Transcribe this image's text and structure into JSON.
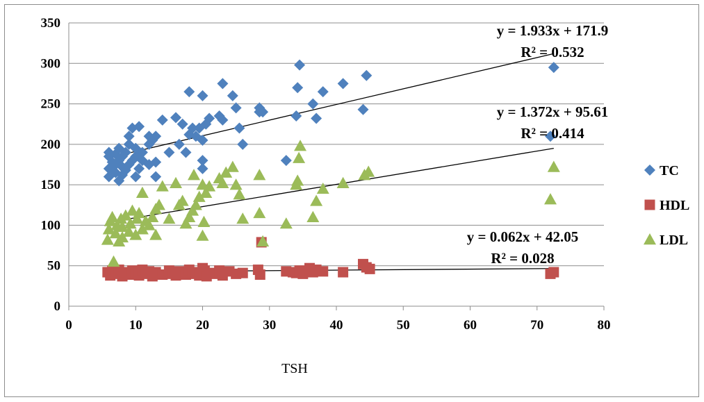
{
  "chart_data": {
    "type": "scatter",
    "xlabel": "TSH",
    "ylabel": "",
    "xlim": [
      0,
      80
    ],
    "ylim": [
      0,
      350
    ],
    "xticks": [
      "0",
      "10",
      "20",
      "30",
      "40",
      "50",
      "60",
      "70",
      "80"
    ],
    "yticks": [
      "0",
      "50",
      "100",
      "150",
      "200",
      "250",
      "300",
      "350"
    ],
    "grid": "horizontal",
    "legend_position": "right",
    "series": [
      {
        "name": "TC",
        "color": "#4F81BD",
        "marker": "diamond",
        "points": [
          [
            6,
            160
          ],
          [
            6,
            170
          ],
          [
            6,
            185
          ],
          [
            6,
            190
          ],
          [
            6.5,
            178
          ],
          [
            7,
            165
          ],
          [
            7,
            175
          ],
          [
            7,
            188
          ],
          [
            7.5,
            155
          ],
          [
            7.5,
            180
          ],
          [
            7.5,
            195
          ],
          [
            8,
            162
          ],
          [
            8,
            172
          ],
          [
            8,
            185
          ],
          [
            8.5,
            168
          ],
          [
            8.5,
            190
          ],
          [
            9,
            175
          ],
          [
            9,
            200
          ],
          [
            9,
            210
          ],
          [
            9.5,
            220
          ],
          [
            9.5,
            180
          ],
          [
            10,
            160
          ],
          [
            10,
            185
          ],
          [
            10,
            195
          ],
          [
            10.5,
            170
          ],
          [
            10.5,
            222
          ],
          [
            11,
            190
          ],
          [
            11,
            180
          ],
          [
            12,
            175
          ],
          [
            12,
            200
          ],
          [
            12,
            210
          ],
          [
            12.5,
            205
          ],
          [
            13,
            160
          ],
          [
            13,
            210
          ],
          [
            13,
            178
          ],
          [
            14,
            230
          ],
          [
            15,
            190
          ],
          [
            16,
            233
          ],
          [
            16.5,
            200
          ],
          [
            17,
            225
          ],
          [
            17.5,
            190
          ],
          [
            18,
            265
          ],
          [
            18,
            212
          ],
          [
            18.5,
            220
          ],
          [
            19,
            210
          ],
          [
            19.5,
            220
          ],
          [
            20,
            170
          ],
          [
            20,
            180
          ],
          [
            20,
            205
          ],
          [
            20,
            260
          ],
          [
            20.5,
            225
          ],
          [
            21,
            232
          ],
          [
            22.5,
            235
          ],
          [
            23,
            275
          ],
          [
            23,
            230
          ],
          [
            24.5,
            260
          ],
          [
            25,
            245
          ],
          [
            25.5,
            220
          ],
          [
            26,
            200
          ],
          [
            28.5,
            245
          ],
          [
            28.5,
            240
          ],
          [
            29,
            240
          ],
          [
            32.5,
            180
          ],
          [
            34,
            235
          ],
          [
            34.2,
            270
          ],
          [
            34.5,
            298
          ],
          [
            36.5,
            250
          ],
          [
            37,
            232
          ],
          [
            38,
            265
          ],
          [
            41,
            275
          ],
          [
            44,
            243
          ],
          [
            44.5,
            285
          ],
          [
            72,
            210
          ],
          [
            72.5,
            295
          ]
        ]
      },
      {
        "name": "HDL",
        "color": "#C0504D",
        "marker": "square",
        "points": [
          [
            5.8,
            42
          ],
          [
            6.2,
            38
          ],
          [
            6.5,
            44
          ],
          [
            7,
            40
          ],
          [
            7.5,
            45
          ],
          [
            8,
            37
          ],
          [
            8.5,
            42
          ],
          [
            9,
            39
          ],
          [
            9.5,
            44
          ],
          [
            10,
            41
          ],
          [
            10.5,
            38
          ],
          [
            11,
            45
          ],
          [
            11.5,
            40
          ],
          [
            12,
            43
          ],
          [
            12.5,
            37
          ],
          [
            13,
            42
          ],
          [
            14,
            39
          ],
          [
            15,
            44
          ],
          [
            15.5,
            40
          ],
          [
            16,
            38
          ],
          [
            16.5,
            43
          ],
          [
            17,
            41
          ],
          [
            17.5,
            39
          ],
          [
            18,
            45
          ],
          [
            18.5,
            42
          ],
          [
            19,
            40
          ],
          [
            19.5,
            38
          ],
          [
            20,
            47
          ],
          [
            20.3,
            44
          ],
          [
            20.6,
            37
          ],
          [
            21,
            41
          ],
          [
            22,
            40
          ],
          [
            22.5,
            44
          ],
          [
            23,
            38
          ],
          [
            24,
            43
          ],
          [
            25,
            40
          ],
          [
            26,
            41
          ],
          [
            28.3,
            45
          ],
          [
            28.6,
            39
          ],
          [
            28.8,
            79
          ],
          [
            32.5,
            43
          ],
          [
            33.5,
            42
          ],
          [
            34,
            41
          ],
          [
            34.5,
            44
          ],
          [
            35,
            40
          ],
          [
            36,
            47
          ],
          [
            36.5,
            42
          ],
          [
            37,
            45
          ],
          [
            38,
            43
          ],
          [
            41,
            42
          ],
          [
            44,
            52
          ],
          [
            44.5,
            48
          ],
          [
            45,
            46
          ],
          [
            72,
            40
          ],
          [
            72.5,
            42
          ]
        ]
      },
      {
        "name": "LDL",
        "color": "#9BBB59",
        "marker": "triangle",
        "points": [
          [
            5.8,
            82
          ],
          [
            6,
            95
          ],
          [
            6.2,
            105
          ],
          [
            6.5,
            110
          ],
          [
            6.7,
            55
          ],
          [
            7,
            90
          ],
          [
            7.2,
            100
          ],
          [
            7.5,
            80
          ],
          [
            7.8,
            108
          ],
          [
            8,
            85
          ],
          [
            8,
            98
          ],
          [
            8.5,
            112
          ],
          [
            9,
            92
          ],
          [
            9.2,
            102
          ],
          [
            9.5,
            118
          ],
          [
            10,
            88
          ],
          [
            10.2,
            108
          ],
          [
            10.5,
            115
          ],
          [
            11,
            95
          ],
          [
            11,
            140
          ],
          [
            11.5,
            105
          ],
          [
            12,
            100
          ],
          [
            12.5,
            110
          ],
          [
            13,
            88
          ],
          [
            13,
            120
          ],
          [
            13.5,
            125
          ],
          [
            14,
            148
          ],
          [
            15,
            108
          ],
          [
            16,
            152
          ],
          [
            16.5,
            125
          ],
          [
            17,
            130
          ],
          [
            17.5,
            102
          ],
          [
            18,
            110
          ],
          [
            18.5,
            118
          ],
          [
            18.7,
            162
          ],
          [
            19,
            125
          ],
          [
            19.5,
            135
          ],
          [
            20,
            150
          ],
          [
            20,
            87
          ],
          [
            20.2,
            104
          ],
          [
            20.5,
            140
          ],
          [
            21,
            148
          ],
          [
            22.5,
            158
          ],
          [
            23,
            152
          ],
          [
            23.5,
            165
          ],
          [
            24.5,
            172
          ],
          [
            25,
            150
          ],
          [
            25.5,
            138
          ],
          [
            26,
            108
          ],
          [
            28.5,
            162
          ],
          [
            28.5,
            115
          ],
          [
            29,
            80
          ],
          [
            32.5,
            102
          ],
          [
            34,
            150
          ],
          [
            34.2,
            155
          ],
          [
            34.4,
            183
          ],
          [
            34.6,
            198
          ],
          [
            36.5,
            110
          ],
          [
            37,
            130
          ],
          [
            38,
            145
          ],
          [
            41,
            152
          ],
          [
            44.2,
            162
          ],
          [
            44.8,
            166
          ],
          [
            72,
            132
          ],
          [
            72.5,
            172
          ]
        ]
      }
    ],
    "trendlines": [
      {
        "series": "TC",
        "slope": 1.933,
        "intercept": 171.9,
        "x_range": [
          6,
          72.5
        ],
        "equation": "y = 1.933x + 171.9",
        "r2": "R² = 0.532"
      },
      {
        "series": "LDL",
        "slope": 1.372,
        "intercept": 95.61,
        "x_range": [
          6,
          72.5
        ],
        "equation": "y = 1.372x + 95.61",
        "r2": "R² = 0.414"
      },
      {
        "series": "HDL",
        "slope": 0.062,
        "intercept": 42.05,
        "x_range": [
          6,
          72.5
        ],
        "equation": "y = 0.062x + 42.05",
        "r2": "R² = 0.028"
      }
    ]
  }
}
